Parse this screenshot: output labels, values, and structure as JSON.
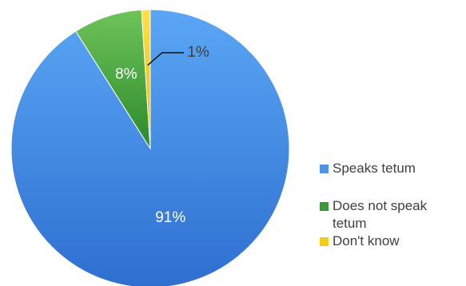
{
  "chart_data": {
    "type": "pie",
    "categories": [
      "Speaks tetum",
      "Does not speak tetum",
      "Don't know"
    ],
    "values": [
      91,
      8,
      1
    ],
    "data_labels": [
      "91%",
      "8%",
      "1%"
    ],
    "colors": [
      "#4f93e6",
      "#3a9a3a",
      "#f2cc1a"
    ],
    "legend_position": "right",
    "start_angle_deg": 0,
    "direction": "clockwise"
  }
}
